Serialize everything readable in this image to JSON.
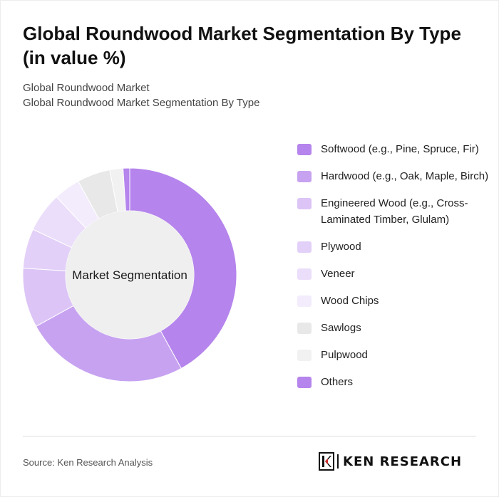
{
  "header": {
    "title": "Global Roundwood Market Segmentation By Type (in value %)",
    "subtitle_line1": "Global Roundwood Market",
    "subtitle_line2": "Global Roundwood Market Segmentation By Type"
  },
  "chart_data": {
    "type": "pie",
    "variant": "donut",
    "center_label": "Market Segmentation",
    "legend_position": "right",
    "series": [
      {
        "name": "Softwood (e.g., Pine, Spruce, Fir)",
        "value": 42,
        "color": "#b584ec"
      },
      {
        "name": "Hardwood (e.g., Oak, Maple, Birch)",
        "value": 25,
        "color": "#c7a2f1"
      },
      {
        "name": "Engineered Wood (e.g., Cross-Laminated Timber, Glulam)",
        "value": 9,
        "color": "#dcc5f6"
      },
      {
        "name": "Plywood",
        "value": 6,
        "color": "#e3d0f8"
      },
      {
        "name": "Veneer",
        "value": 6,
        "color": "#ebdefa"
      },
      {
        "name": "Wood Chips",
        "value": 4,
        "color": "#f3ecfc"
      },
      {
        "name": "Sawlogs",
        "value": 5,
        "color": "#e8e8e8"
      },
      {
        "name": "Pulpwood",
        "value": 2,
        "color": "#f1f1f1"
      },
      {
        "name": "Others",
        "value": 1,
        "color": "#b584ec"
      }
    ]
  },
  "footer": {
    "source": "Source: Ken Research Analysis",
    "logo_text": "KEN RESEARCH"
  }
}
